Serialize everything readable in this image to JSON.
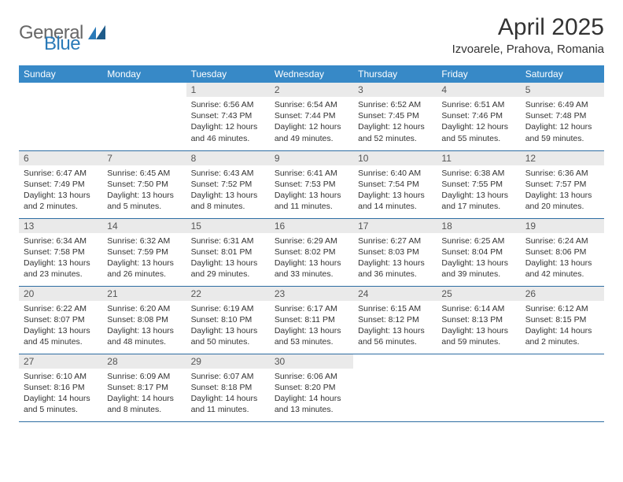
{
  "brand": {
    "general": "General",
    "blue": "Blue"
  },
  "title": "April 2025",
  "location": "Izvoarele, Prahova, Romania",
  "calendar": {
    "header_bg": "#3789c7",
    "header_fg": "#ffffff",
    "daynum_bg": "#eaeaea",
    "rule_color": "#2e6da3",
    "background": "#ffffff",
    "text_color": "#333333",
    "font_size_header": 12,
    "font_size_body": 10.5,
    "columns": [
      "Sunday",
      "Monday",
      "Tuesday",
      "Wednesday",
      "Thursday",
      "Friday",
      "Saturday"
    ],
    "weeks": [
      [
        null,
        null,
        {
          "n": "1",
          "sr": "Sunrise: 6:56 AM",
          "ss": "Sunset: 7:43 PM",
          "dl": "Daylight: 12 hours and 46 minutes."
        },
        {
          "n": "2",
          "sr": "Sunrise: 6:54 AM",
          "ss": "Sunset: 7:44 PM",
          "dl": "Daylight: 12 hours and 49 minutes."
        },
        {
          "n": "3",
          "sr": "Sunrise: 6:52 AM",
          "ss": "Sunset: 7:45 PM",
          "dl": "Daylight: 12 hours and 52 minutes."
        },
        {
          "n": "4",
          "sr": "Sunrise: 6:51 AM",
          "ss": "Sunset: 7:46 PM",
          "dl": "Daylight: 12 hours and 55 minutes."
        },
        {
          "n": "5",
          "sr": "Sunrise: 6:49 AM",
          "ss": "Sunset: 7:48 PM",
          "dl": "Daylight: 12 hours and 59 minutes."
        }
      ],
      [
        {
          "n": "6",
          "sr": "Sunrise: 6:47 AM",
          "ss": "Sunset: 7:49 PM",
          "dl": "Daylight: 13 hours and 2 minutes."
        },
        {
          "n": "7",
          "sr": "Sunrise: 6:45 AM",
          "ss": "Sunset: 7:50 PM",
          "dl": "Daylight: 13 hours and 5 minutes."
        },
        {
          "n": "8",
          "sr": "Sunrise: 6:43 AM",
          "ss": "Sunset: 7:52 PM",
          "dl": "Daylight: 13 hours and 8 minutes."
        },
        {
          "n": "9",
          "sr": "Sunrise: 6:41 AM",
          "ss": "Sunset: 7:53 PM",
          "dl": "Daylight: 13 hours and 11 minutes."
        },
        {
          "n": "10",
          "sr": "Sunrise: 6:40 AM",
          "ss": "Sunset: 7:54 PM",
          "dl": "Daylight: 13 hours and 14 minutes."
        },
        {
          "n": "11",
          "sr": "Sunrise: 6:38 AM",
          "ss": "Sunset: 7:55 PM",
          "dl": "Daylight: 13 hours and 17 minutes."
        },
        {
          "n": "12",
          "sr": "Sunrise: 6:36 AM",
          "ss": "Sunset: 7:57 PM",
          "dl": "Daylight: 13 hours and 20 minutes."
        }
      ],
      [
        {
          "n": "13",
          "sr": "Sunrise: 6:34 AM",
          "ss": "Sunset: 7:58 PM",
          "dl": "Daylight: 13 hours and 23 minutes."
        },
        {
          "n": "14",
          "sr": "Sunrise: 6:32 AM",
          "ss": "Sunset: 7:59 PM",
          "dl": "Daylight: 13 hours and 26 minutes."
        },
        {
          "n": "15",
          "sr": "Sunrise: 6:31 AM",
          "ss": "Sunset: 8:01 PM",
          "dl": "Daylight: 13 hours and 29 minutes."
        },
        {
          "n": "16",
          "sr": "Sunrise: 6:29 AM",
          "ss": "Sunset: 8:02 PM",
          "dl": "Daylight: 13 hours and 33 minutes."
        },
        {
          "n": "17",
          "sr": "Sunrise: 6:27 AM",
          "ss": "Sunset: 8:03 PM",
          "dl": "Daylight: 13 hours and 36 minutes."
        },
        {
          "n": "18",
          "sr": "Sunrise: 6:25 AM",
          "ss": "Sunset: 8:04 PM",
          "dl": "Daylight: 13 hours and 39 minutes."
        },
        {
          "n": "19",
          "sr": "Sunrise: 6:24 AM",
          "ss": "Sunset: 8:06 PM",
          "dl": "Daylight: 13 hours and 42 minutes."
        }
      ],
      [
        {
          "n": "20",
          "sr": "Sunrise: 6:22 AM",
          "ss": "Sunset: 8:07 PM",
          "dl": "Daylight: 13 hours and 45 minutes."
        },
        {
          "n": "21",
          "sr": "Sunrise: 6:20 AM",
          "ss": "Sunset: 8:08 PM",
          "dl": "Daylight: 13 hours and 48 minutes."
        },
        {
          "n": "22",
          "sr": "Sunrise: 6:19 AM",
          "ss": "Sunset: 8:10 PM",
          "dl": "Daylight: 13 hours and 50 minutes."
        },
        {
          "n": "23",
          "sr": "Sunrise: 6:17 AM",
          "ss": "Sunset: 8:11 PM",
          "dl": "Daylight: 13 hours and 53 minutes."
        },
        {
          "n": "24",
          "sr": "Sunrise: 6:15 AM",
          "ss": "Sunset: 8:12 PM",
          "dl": "Daylight: 13 hours and 56 minutes."
        },
        {
          "n": "25",
          "sr": "Sunrise: 6:14 AM",
          "ss": "Sunset: 8:13 PM",
          "dl": "Daylight: 13 hours and 59 minutes."
        },
        {
          "n": "26",
          "sr": "Sunrise: 6:12 AM",
          "ss": "Sunset: 8:15 PM",
          "dl": "Daylight: 14 hours and 2 minutes."
        }
      ],
      [
        {
          "n": "27",
          "sr": "Sunrise: 6:10 AM",
          "ss": "Sunset: 8:16 PM",
          "dl": "Daylight: 14 hours and 5 minutes."
        },
        {
          "n": "28",
          "sr": "Sunrise: 6:09 AM",
          "ss": "Sunset: 8:17 PM",
          "dl": "Daylight: 14 hours and 8 minutes."
        },
        {
          "n": "29",
          "sr": "Sunrise: 6:07 AM",
          "ss": "Sunset: 8:18 PM",
          "dl": "Daylight: 14 hours and 11 minutes."
        },
        {
          "n": "30",
          "sr": "Sunrise: 6:06 AM",
          "ss": "Sunset: 8:20 PM",
          "dl": "Daylight: 14 hours and 13 minutes."
        },
        null,
        null,
        null
      ]
    ]
  }
}
